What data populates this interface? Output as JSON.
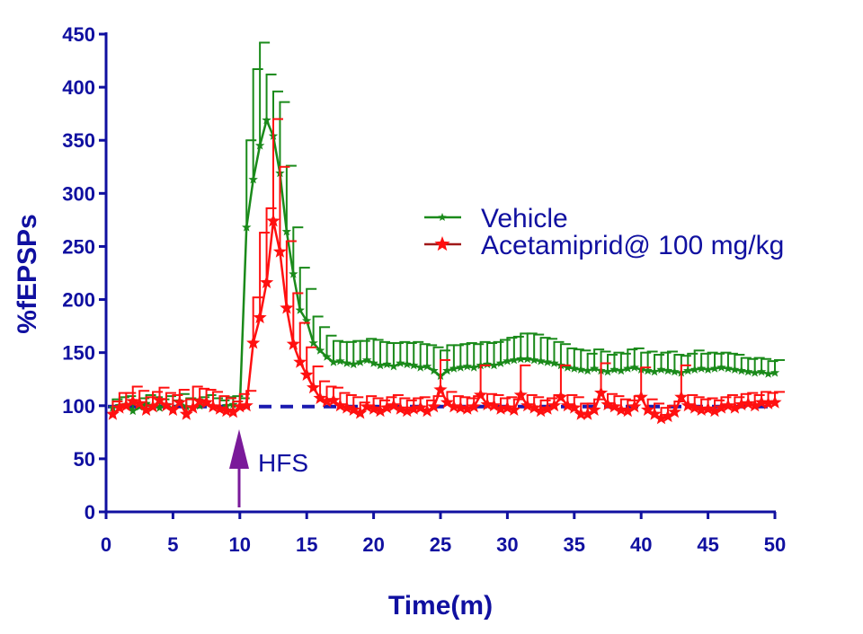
{
  "chart_data": {
    "type": "line",
    "title": "",
    "xlabel": "Time(m)",
    "ylabel": "%fEPSPs",
    "xlim": [
      0,
      50
    ],
    "ylim": [
      0,
      450
    ],
    "xticks": [
      "0",
      "5",
      "10",
      "15",
      "20",
      "25",
      "30",
      "35",
      "40",
      "45",
      "50"
    ],
    "yticks": [
      "0",
      "50",
      "100",
      "150",
      "200",
      "250",
      "300",
      "350",
      "400",
      "450"
    ],
    "x_start": 0.5,
    "x_step": 0.5,
    "baseline": 100,
    "annotation": {
      "label": "HFS",
      "x": 10
    },
    "legend_position": "center-right",
    "series": [
      {
        "name": "Vehicle",
        "color": "#1a8a1a",
        "marker": "star-small",
        "values": [
          98,
          100,
          101,
          95,
          99,
          102,
          100,
          98,
          101,
          97,
          103,
          99,
          98,
          100,
          102,
          99,
          97,
          100,
          101,
          99,
          268,
          313,
          345,
          369,
          354,
          319,
          264,
          224,
          190,
          180,
          159,
          152,
          146,
          141,
          142,
          140,
          139,
          141,
          143,
          140,
          138,
          139,
          137,
          140,
          139,
          138,
          136,
          137,
          133,
          128,
          133,
          135,
          136,
          137,
          136,
          138,
          139,
          138,
          140,
          142,
          143,
          144,
          144,
          143,
          142,
          141,
          140,
          138,
          136,
          135,
          134,
          133,
          135,
          133,
          132,
          134,
          133,
          135,
          136,
          134,
          133,
          132,
          134,
          133,
          132,
          131,
          133,
          134,
          135,
          134,
          135,
          136,
          135,
          134,
          133,
          132,
          131,
          132,
          130,
          131
        ],
        "errors": [
          8,
          8,
          8,
          8,
          8,
          8,
          8,
          8,
          8,
          8,
          8,
          8,
          8,
          8,
          8,
          8,
          8,
          8,
          8,
          8,
          82,
          104,
          97,
          43,
          42,
          67,
          62,
          44,
          40,
          30,
          25,
          22,
          20,
          20,
          18,
          20,
          22,
          20,
          20,
          22,
          22,
          20,
          22,
          20,
          20,
          22,
          22,
          20,
          22,
          24,
          24,
          22,
          22,
          22,
          22,
          22,
          20,
          22,
          22,
          22,
          22,
          24,
          24,
          24,
          22,
          22,
          20,
          20,
          18,
          18,
          18,
          16,
          18,
          18,
          16,
          16,
          16,
          18,
          18,
          16,
          18,
          16,
          16,
          18,
          16,
          16,
          16,
          18,
          14,
          16,
          14,
          14,
          14,
          14,
          12,
          12,
          14,
          12,
          12,
          12
        ]
      },
      {
        "name": "Acetamiprid@ 100 mg/kg",
        "color": "#ff1010",
        "marker": "star-large",
        "values": [
          92,
          98,
          100,
          104,
          102,
          96,
          99,
          105,
          100,
          96,
          103,
          92,
          98,
          104,
          103,
          99,
          97,
          95,
          94,
          99,
          100,
          159,
          183,
          216,
          274,
          245,
          192,
          158,
          141,
          129,
          117,
          107,
          104,
          105,
          100,
          98,
          96,
          93,
          99,
          97,
          95,
          98,
          100,
          97,
          95,
          97,
          98,
          95,
          99,
          115,
          103,
          99,
          98,
          97,
          99,
          110,
          101,
          100,
          97,
          98,
          96,
          110,
          100,
          98,
          95,
          97,
          100,
          108,
          100,
          98,
          92,
          92,
          96,
          112,
          101,
          99,
          96,
          95,
          99,
          108,
          96,
          92,
          88,
          90,
          94,
          108,
          100,
          98,
          96,
          97,
          95,
          98,
          100,
          98,
          101,
          102,
          100,
          103,
          102,
          103
        ],
        "errors": [
          12,
          14,
          12,
          14,
          12,
          12,
          14,
          12,
          12,
          14,
          12,
          14,
          20,
          12,
          12,
          14,
          12,
          12,
          10,
          12,
          14,
          43,
          80,
          70,
          96,
          80,
          63,
          48,
          37,
          26,
          20,
          16,
          14,
          12,
          12,
          12,
          12,
          10,
          10,
          10,
          10,
          10,
          10,
          10,
          10,
          10,
          10,
          10,
          10,
          28,
          10,
          10,
          10,
          10,
          10,
          28,
          10,
          10,
          10,
          10,
          10,
          28,
          10,
          10,
          10,
          10,
          10,
          30,
          10,
          10,
          10,
          10,
          10,
          28,
          10,
          10,
          10,
          10,
          10,
          28,
          10,
          10,
          10,
          10,
          10,
          30,
          10,
          10,
          10,
          10,
          10,
          10,
          10,
          10,
          10,
          10,
          10,
          10,
          10,
          10
        ]
      }
    ]
  }
}
